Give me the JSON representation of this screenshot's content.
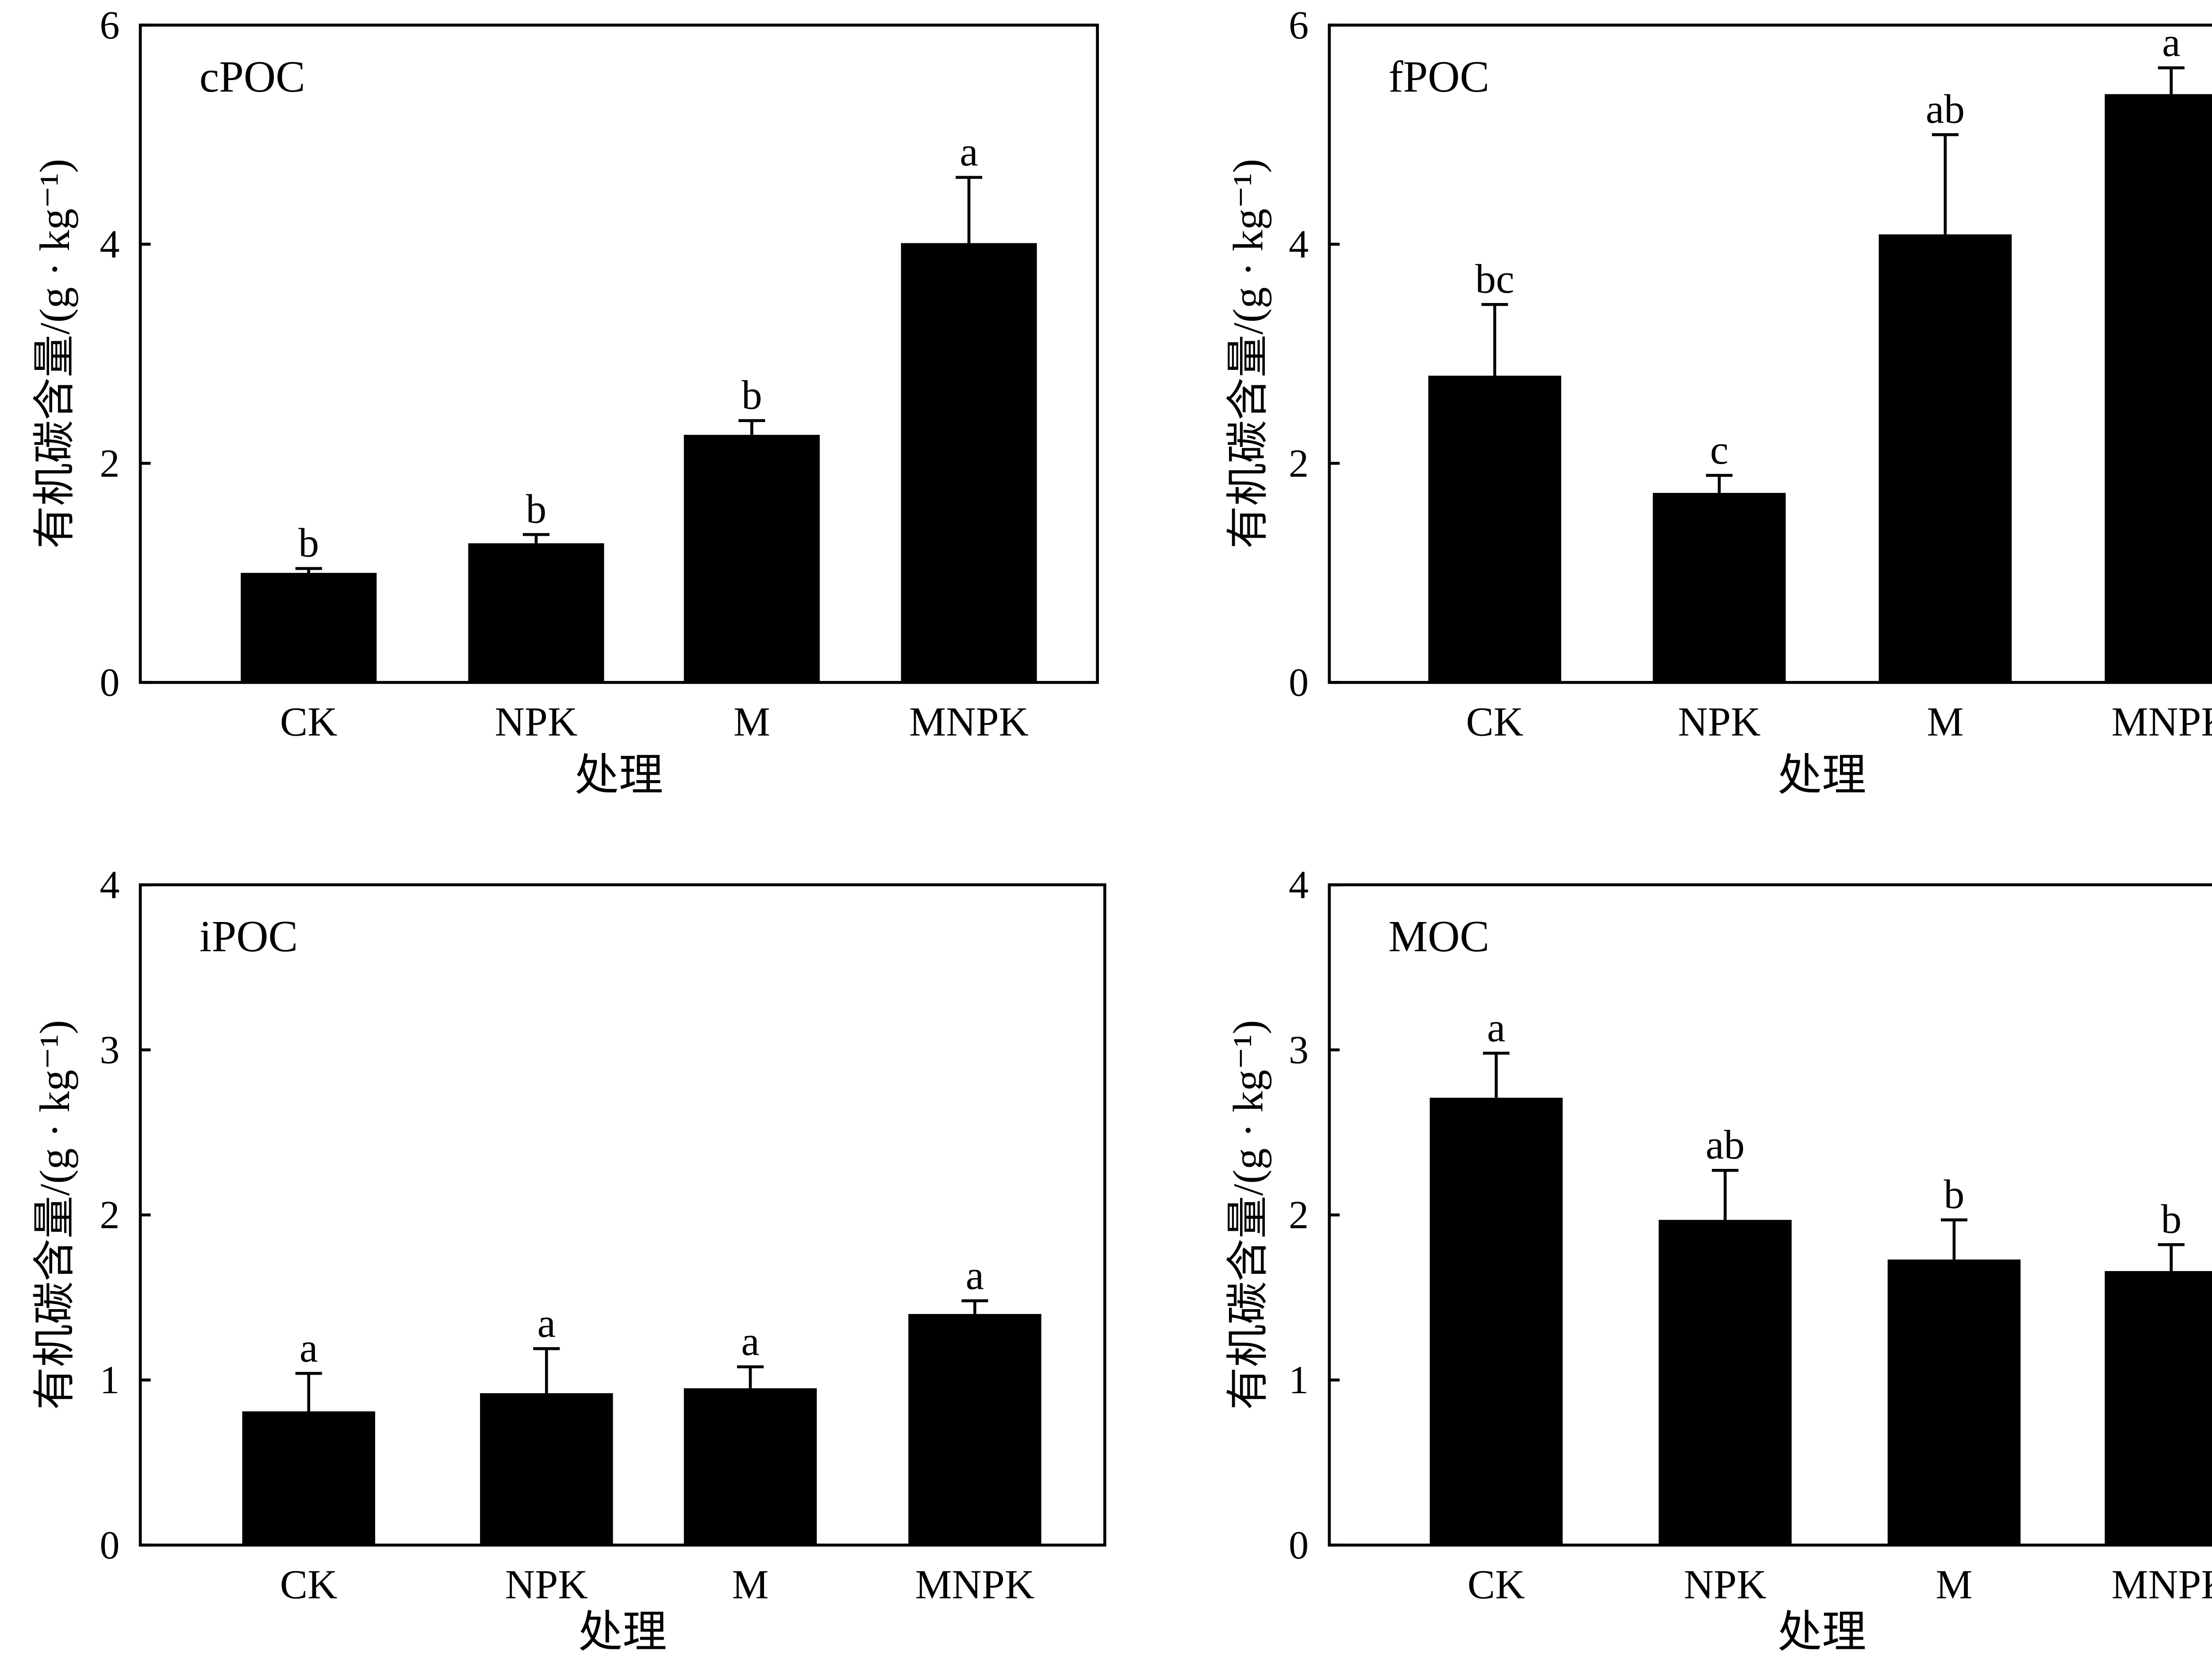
{
  "chart_data": [
    {
      "type": "bar",
      "panel_label": "cPOC",
      "categories": [
        "CK",
        "NPK",
        "M",
        "MNPK"
      ],
      "values": [
        1.0,
        1.27,
        2.26,
        4.01
      ],
      "errors": [
        0.04,
        0.08,
        0.13,
        0.6
      ],
      "letters": [
        "b",
        "b",
        "b",
        "a"
      ],
      "xlabel": "处理",
      "ylabel": "有机碳含量/(g · kg⁻¹)",
      "ylim": [
        0,
        6
      ],
      "yticks": [
        0,
        2,
        4,
        6
      ],
      "yticklabels": [
        "0",
        "2",
        "4",
        "6"
      ],
      "bar_color": "#000000"
    },
    {
      "type": "bar",
      "panel_label": "fPOC",
      "categories": [
        "CK",
        "NPK",
        "M",
        "MNPK"
      ],
      "values": [
        2.8,
        1.73,
        4.09,
        5.37
      ],
      "errors": [
        0.65,
        0.16,
        0.91,
        0.24
      ],
      "letters": [
        "bc",
        "c",
        "ab",
        "a"
      ],
      "xlabel": "处理",
      "ylabel": "有机碳含量/(g · kg⁻¹)",
      "ylim": [
        0,
        6
      ],
      "yticks": [
        0,
        2,
        4,
        6
      ],
      "yticklabels": [
        "0",
        "2",
        "4",
        "6"
      ],
      "bar_color": "#000000"
    },
    {
      "type": "bar",
      "panel_label": "iPOC",
      "categories": [
        "CK",
        "NPK",
        "M",
        "MNPK"
      ],
      "values": [
        0.81,
        0.92,
        0.95,
        1.4
      ],
      "errors": [
        0.23,
        0.27,
        0.13,
        0.08
      ],
      "letters": [
        "a",
        "a",
        "a",
        "a"
      ],
      "xlabel": "处理",
      "ylabel": "有机碳含量/(g · kg⁻¹)",
      "ylim": [
        0,
        4
      ],
      "yticks": [
        0,
        1,
        2,
        3,
        4
      ],
      "yticklabels": [
        "0",
        "1",
        "2",
        "3",
        "4"
      ],
      "bar_color": "#000000"
    },
    {
      "type": "bar",
      "panel_label": "MOC",
      "categories": [
        "CK",
        "NPK",
        "M",
        "MNPK"
      ],
      "values": [
        2.71,
        1.97,
        1.73,
        1.66
      ],
      "errors": [
        0.27,
        0.3,
        0.24,
        0.16
      ],
      "letters": [
        "a",
        "ab",
        "b",
        "b"
      ],
      "xlabel": "处理",
      "ylabel": "有机碳含量/(g · kg⁻¹)",
      "ylim": [
        0,
        4
      ],
      "yticks": [
        0,
        1,
        2,
        3,
        4
      ],
      "yticklabels": [
        "0",
        "1",
        "2",
        "3",
        "4"
      ],
      "bar_color": "#000000"
    }
  ]
}
